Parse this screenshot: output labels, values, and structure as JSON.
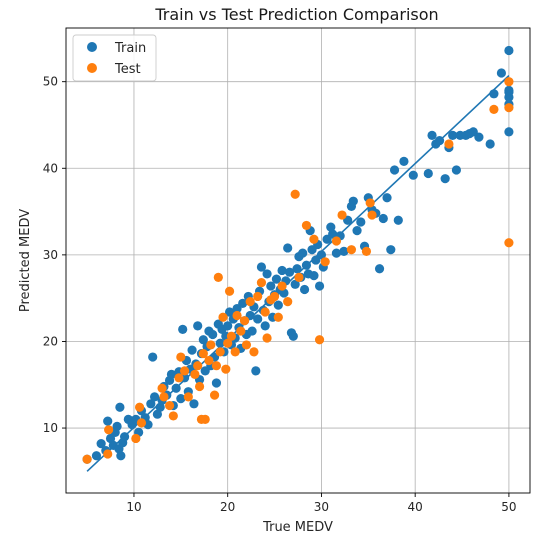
{
  "chart_data": {
    "type": "scatter",
    "title": "Train vs Test Prediction Comparison",
    "xlabel": "True MEDV",
    "ylabel": "Predicted MEDV",
    "xlim": [
      2.75,
      52.25
    ],
    "ylim": [
      2.5,
      56.2
    ],
    "xticks": [
      10,
      20,
      30,
      40,
      50
    ],
    "yticks": [
      10,
      20,
      30,
      40,
      50
    ],
    "grid": true,
    "legend": "top-left",
    "colors": {
      "train": "#1f77b4",
      "test": "#ff7f0e"
    },
    "fit_line": {
      "x": [
        5,
        50
      ],
      "y": [
        5.0,
        50.7
      ]
    },
    "series": [
      {
        "name": "Train",
        "points": [
          [
            5,
            6.4
          ],
          [
            6,
            6.8
          ],
          [
            6.5,
            8.2
          ],
          [
            7,
            7.4
          ],
          [
            7.2,
            10.8
          ],
          [
            7.5,
            8.8
          ],
          [
            7.8,
            8.0
          ],
          [
            8,
            9.5
          ],
          [
            8.2,
            10.2
          ],
          [
            8.4,
            7.6
          ],
          [
            8.5,
            12.4
          ],
          [
            8.6,
            6.8
          ],
          [
            8.8,
            8.3
          ],
          [
            9,
            9.0
          ],
          [
            9.4,
            11.0
          ],
          [
            9.8,
            10.4
          ],
          [
            10.2,
            11.0
          ],
          [
            10.5,
            9.5
          ],
          [
            10.8,
            12.0
          ],
          [
            11.2,
            11.2
          ],
          [
            11.5,
            10.4
          ],
          [
            11.8,
            12.8
          ],
          [
            12,
            18.2
          ],
          [
            12.2,
            13.6
          ],
          [
            12.5,
            11.6
          ],
          [
            12.8,
            12.4
          ],
          [
            13,
            13.2
          ],
          [
            13.2,
            14.8
          ],
          [
            13.5,
            13.8
          ],
          [
            13.8,
            15.5
          ],
          [
            14,
            16.2
          ],
          [
            14.2,
            12.6
          ],
          [
            14.5,
            14.6
          ],
          [
            14.8,
            16.5
          ],
          [
            15,
            13.4
          ],
          [
            15.2,
            21.4
          ],
          [
            15.4,
            15.8
          ],
          [
            15.6,
            17.8
          ],
          [
            15.8,
            14.2
          ],
          [
            16,
            16.8
          ],
          [
            16.2,
            19.0
          ],
          [
            16.4,
            12.8
          ],
          [
            16.6,
            17.4
          ],
          [
            16.8,
            21.8
          ],
          [
            17,
            15.6
          ],
          [
            17.2,
            18.6
          ],
          [
            17.4,
            20.2
          ],
          [
            17.6,
            16.6
          ],
          [
            17.8,
            19.4
          ],
          [
            18,
            21.2
          ],
          [
            18.2,
            17.2
          ],
          [
            18.4,
            20.8
          ],
          [
            18.6,
            18.2
          ],
          [
            18.8,
            15.2
          ],
          [
            19,
            22.0
          ],
          [
            19.2,
            19.8
          ],
          [
            19.4,
            21.4
          ],
          [
            19.6,
            18.8
          ],
          [
            19.8,
            20.6
          ],
          [
            20,
            21.8
          ],
          [
            20.2,
            23.4
          ],
          [
            20.4,
            19.6
          ],
          [
            20.6,
            22.6
          ],
          [
            20.8,
            20.4
          ],
          [
            21,
            23.8
          ],
          [
            21.2,
            21.6
          ],
          [
            21.4,
            19.2
          ],
          [
            21.6,
            24.4
          ],
          [
            21.8,
            22.4
          ],
          [
            22,
            20.8
          ],
          [
            22.2,
            25.2
          ],
          [
            22.4,
            23.0
          ],
          [
            22.6,
            21.2
          ],
          [
            22.8,
            24.0
          ],
          [
            23,
            16.6
          ],
          [
            23.2,
            22.6
          ],
          [
            23.4,
            25.8
          ],
          [
            23.6,
            28.6
          ],
          [
            23.8,
            23.6
          ],
          [
            24,
            21.8
          ],
          [
            24.2,
            27.8
          ],
          [
            24.4,
            24.6
          ],
          [
            24.6,
            26.4
          ],
          [
            24.8,
            22.8
          ],
          [
            25,
            25.4
          ],
          [
            25.2,
            27.2
          ],
          [
            25.4,
            24.2
          ],
          [
            25.6,
            26.0
          ],
          [
            25.8,
            28.2
          ],
          [
            26,
            25.6
          ],
          [
            26.2,
            27.0
          ],
          [
            26.4,
            30.8
          ],
          [
            26.6,
            28.0
          ],
          [
            26.8,
            21.0
          ],
          [
            27,
            20.6
          ],
          [
            27.2,
            26.6
          ],
          [
            27.4,
            28.4
          ],
          [
            27.6,
            29.8
          ],
          [
            27.8,
            27.4
          ],
          [
            28,
            30.2
          ],
          [
            28.2,
            26.0
          ],
          [
            28.4,
            28.8
          ],
          [
            28.6,
            27.8
          ],
          [
            28.8,
            32.8
          ],
          [
            29,
            30.6
          ],
          [
            29.2,
            27.6
          ],
          [
            29.4,
            29.4
          ],
          [
            29.6,
            31.2
          ],
          [
            29.8,
            26.4
          ],
          [
            30,
            30.0
          ],
          [
            30.2,
            28.6
          ],
          [
            30.6,
            31.8
          ],
          [
            31,
            33.2
          ],
          [
            31.2,
            32.4
          ],
          [
            31.6,
            30.2
          ],
          [
            32,
            32.2
          ],
          [
            32.4,
            30.4
          ],
          [
            32.8,
            34.0
          ],
          [
            33.2,
            35.6
          ],
          [
            33.4,
            36.2
          ],
          [
            33.8,
            32.8
          ],
          [
            34.2,
            33.8
          ],
          [
            34.6,
            31.0
          ],
          [
            35,
            36.6
          ],
          [
            35.4,
            35.2
          ],
          [
            35.8,
            34.8
          ],
          [
            36.2,
            28.4
          ],
          [
            36.6,
            34.2
          ],
          [
            37,
            36.6
          ],
          [
            37.4,
            30.6
          ],
          [
            37.8,
            39.8
          ],
          [
            38.2,
            34.0
          ],
          [
            38.8,
            40.8
          ],
          [
            39.8,
            39.2
          ],
          [
            41.4,
            39.4
          ],
          [
            41.8,
            43.8
          ],
          [
            42.2,
            42.8
          ],
          [
            42.6,
            43.2
          ],
          [
            43.2,
            38.8
          ],
          [
            43.6,
            42.4
          ],
          [
            44,
            43.8
          ],
          [
            44.4,
            39.8
          ],
          [
            44.8,
            43.8
          ],
          [
            45.4,
            43.8
          ],
          [
            45.8,
            44.0
          ],
          [
            46.2,
            44.2
          ],
          [
            46.8,
            43.6
          ],
          [
            48,
            42.8
          ],
          [
            48.4,
            48.6
          ],
          [
            49.2,
            51.0
          ],
          [
            50,
            53.6
          ],
          [
            50,
            49.0
          ],
          [
            50,
            48.8
          ],
          [
            50,
            48.2
          ],
          [
            50,
            47.4
          ],
          [
            50,
            44.2
          ]
        ]
      },
      {
        "name": "Test",
        "points": [
          [
            5,
            6.4
          ],
          [
            7.2,
            7.0
          ],
          [
            7.3,
            9.8
          ],
          [
            10.2,
            8.8
          ],
          [
            10.6,
            12.4
          ],
          [
            10.8,
            10.6
          ],
          [
            13,
            14.6
          ],
          [
            13.2,
            13.6
          ],
          [
            13.8,
            12.6
          ],
          [
            14.2,
            11.4
          ],
          [
            14.8,
            15.8
          ],
          [
            15,
            18.2
          ],
          [
            15.4,
            16.6
          ],
          [
            15.8,
            13.6
          ],
          [
            16.5,
            16.2
          ],
          [
            16.8,
            17.2
          ],
          [
            17,
            14.8
          ],
          [
            17.2,
            11.0
          ],
          [
            17.4,
            18.6
          ],
          [
            17.6,
            11.0
          ],
          [
            18,
            17.8
          ],
          [
            18.2,
            19.6
          ],
          [
            18.6,
            13.8
          ],
          [
            18.8,
            17.2
          ],
          [
            19,
            27.4
          ],
          [
            19.2,
            18.8
          ],
          [
            19.5,
            22.8
          ],
          [
            19.8,
            16.8
          ],
          [
            20,
            19.8
          ],
          [
            20.2,
            25.8
          ],
          [
            20.4,
            20.6
          ],
          [
            20.8,
            18.8
          ],
          [
            21,
            23.0
          ],
          [
            21.4,
            21.2
          ],
          [
            21.8,
            22.4
          ],
          [
            22,
            19.6
          ],
          [
            22.4,
            24.6
          ],
          [
            22.8,
            18.8
          ],
          [
            23.2,
            25.2
          ],
          [
            23.6,
            26.8
          ],
          [
            24,
            23.4
          ],
          [
            24.2,
            20.4
          ],
          [
            24.6,
            24.8
          ],
          [
            25,
            25.2
          ],
          [
            25.4,
            22.8
          ],
          [
            25.8,
            26.4
          ],
          [
            26.4,
            24.6
          ],
          [
            27.2,
            37.0
          ],
          [
            27.6,
            27.4
          ],
          [
            28.4,
            33.4
          ],
          [
            29.2,
            31.8
          ],
          [
            29.8,
            20.2
          ],
          [
            30.4,
            29.2
          ],
          [
            31.6,
            31.6
          ],
          [
            32.2,
            34.6
          ],
          [
            33.2,
            30.6
          ],
          [
            34.8,
            30.4
          ],
          [
            35.2,
            36.0
          ],
          [
            35.4,
            34.6
          ],
          [
            43.6,
            42.8
          ],
          [
            48.4,
            46.8
          ],
          [
            50,
            50.0
          ],
          [
            50,
            47.0
          ],
          [
            50,
            31.4
          ]
        ]
      }
    ]
  }
}
